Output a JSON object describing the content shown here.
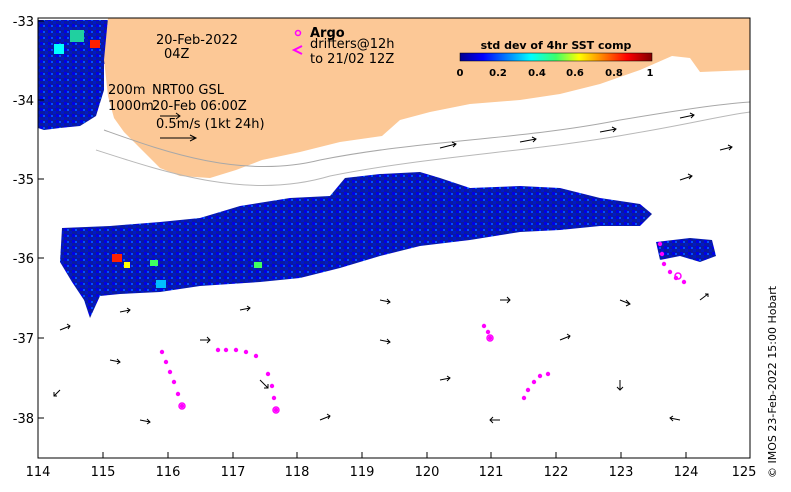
{
  "map": {
    "date_label": "20-Feb-2022",
    "time_label": "04Z",
    "depth_200": "200m",
    "depth_1000": "1000m",
    "current_source": "NRT00 GSL",
    "current_time": "20-Feb 06:00Z",
    "vector_scale_label": "0.5m/s (1kt 24h)",
    "argo_title": "Argo",
    "argo_line1": "drifters@12h",
    "argo_line2": "to 21/02 12Z",
    "argo_color": "#ff00ff",
    "land_color": "#fcc896",
    "colorbar": {
      "title": "std dev of 4hr SST comp",
      "ticks": [
        "0",
        "0.2",
        "0.4",
        "0.6",
        "0.8",
        "1"
      ],
      "min": 0,
      "max": 1,
      "colormap": "jet"
    },
    "x_axis": {
      "min": 114,
      "max": 125,
      "ticks": [
        "114",
        "115",
        "116",
        "117",
        "118",
        "119",
        "120",
        "121",
        "122",
        "123",
        "124",
        "125"
      ]
    },
    "y_axis": {
      "min": -38.5,
      "max": -32.9,
      "ticks": [
        "-33",
        "-34",
        "-35",
        "-36",
        "-37",
        "-38"
      ]
    },
    "credit": "© IMOS 23-Feb-2022 15:00 Hobart"
  }
}
